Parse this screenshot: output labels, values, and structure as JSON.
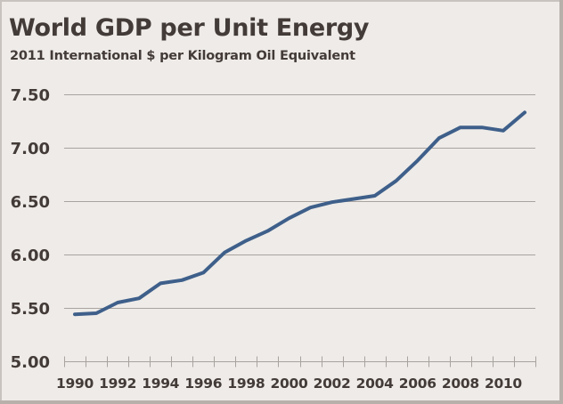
{
  "chart_data": {
    "type": "line",
    "title": "World GDP per Unit Energy",
    "subtitle": "2011 International $ per Kilogram Oil Equivalent",
    "xlabel": "",
    "ylabel": "",
    "ylim": [
      5.0,
      7.5
    ],
    "yticks": [
      "5.00",
      "5.50",
      "6.00",
      "6.50",
      "7.00",
      "7.50"
    ],
    "ytick_values": [
      5.0,
      5.5,
      6.0,
      6.5,
      7.0,
      7.5
    ],
    "x": [
      1990,
      1991,
      1992,
      1993,
      1994,
      1995,
      1996,
      1997,
      1998,
      1999,
      2000,
      2001,
      2002,
      2003,
      2004,
      2005,
      2006,
      2007,
      2008,
      2009,
      2010,
      2011
    ],
    "xtick_labels": [
      "1990",
      "1992",
      "1994",
      "1996",
      "1998",
      "2000",
      "2002",
      "2004",
      "2006",
      "2008",
      "2010"
    ],
    "grid": "horizontal",
    "legend": "none",
    "series": [
      {
        "name": "World GDP per Unit Energy",
        "color": "#3e5f8a",
        "values": [
          5.44,
          5.45,
          5.55,
          5.59,
          5.73,
          5.76,
          5.83,
          6.02,
          6.13,
          6.22,
          6.34,
          6.44,
          6.49,
          6.52,
          6.55,
          6.69,
          6.88,
          7.09,
          7.19,
          7.19,
          7.16,
          7.33
        ]
      }
    ]
  },
  "colors": {
    "background": "#eeebe8",
    "text": "#433b37",
    "grid": "#a9a39f",
    "line": "#3e5f8a"
  }
}
